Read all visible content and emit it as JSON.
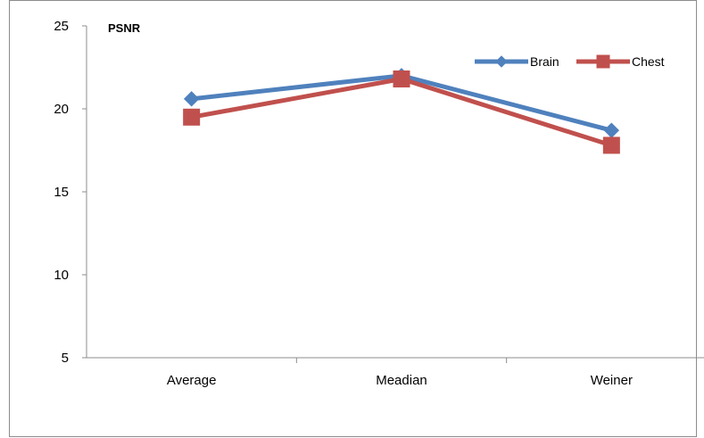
{
  "chart_data": {
    "type": "line",
    "title": "PSNR",
    "xlabel": "",
    "ylabel": "",
    "categories": [
      "Average",
      "Meadian",
      "Weiner"
    ],
    "ylim": [
      5,
      25
    ],
    "yticks": [
      5,
      10,
      15,
      20,
      25
    ],
    "grid": false,
    "legend_position": "top-right",
    "series": [
      {
        "name": "Brain",
        "values": [
          20.6,
          22.0,
          18.7
        ],
        "color": "#4F81BD",
        "marker": "diamond"
      },
      {
        "name": "Chest",
        "values": [
          19.5,
          21.8,
          17.8
        ],
        "color": "#C0504D",
        "marker": "square"
      }
    ]
  }
}
